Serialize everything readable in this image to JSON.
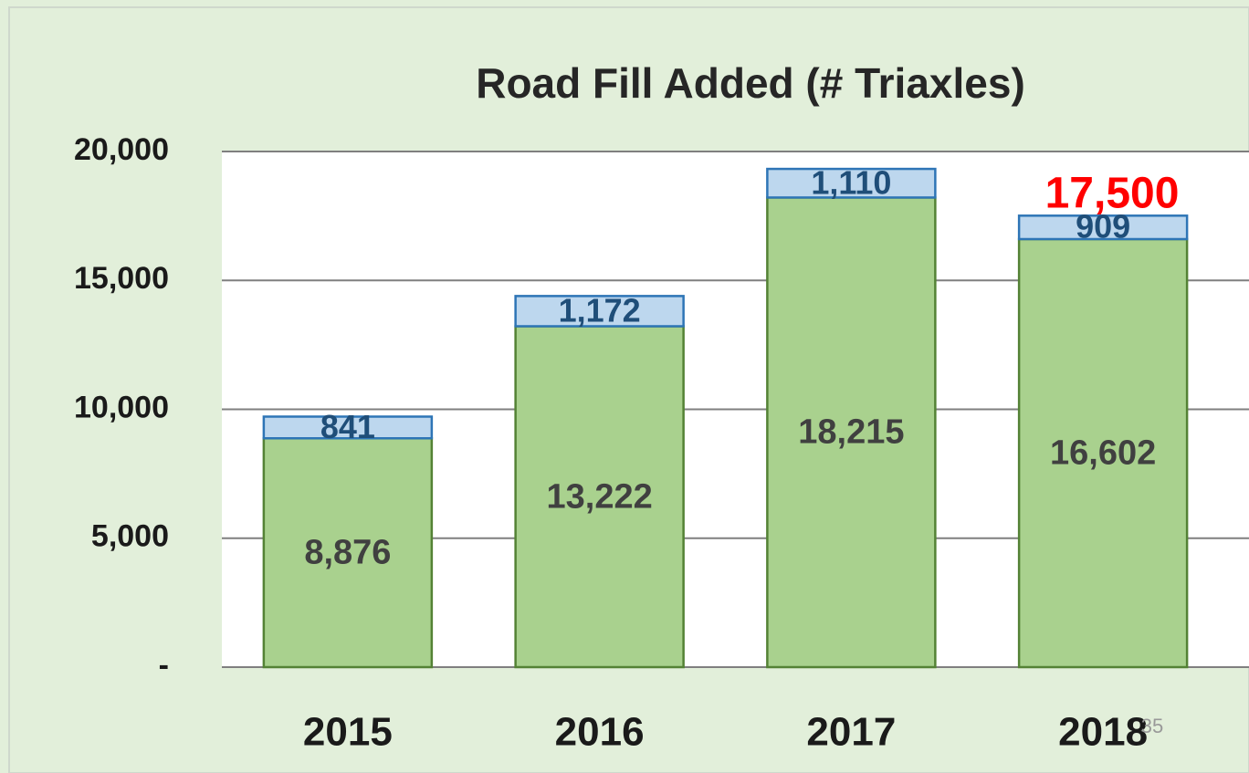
{
  "chart_data": {
    "type": "stacked_bar",
    "title": "Road Fill Added (# Triaxles)",
    "categories": [
      "2015",
      "2016",
      "2017",
      "2018"
    ],
    "series": [
      {
        "color": "#a9d18e",
        "values": [
          8876,
          13222,
          18215,
          16602
        ],
        "value_labels": [
          "8,876",
          "13,222",
          "18,215",
          "16,602"
        ]
      },
      {
        "color": "#bdd7ee",
        "values": [
          841,
          1172,
          1110,
          909
        ],
        "value_labels": [
          "841",
          "1,172",
          "1,110",
          "909"
        ]
      }
    ],
    "ylim": [
      0,
      20000
    ],
    "yticks": [
      {
        "value": 0,
        "label": "-"
      },
      {
        "value": 5000,
        "label": "5,000"
      },
      {
        "value": 10000,
        "label": "10,000"
      },
      {
        "value": 15000,
        "label": "15,000"
      },
      {
        "value": 20000,
        "label": "20,000"
      }
    ],
    "grid": true,
    "annotation": "17,500",
    "slide_number": "35"
  }
}
